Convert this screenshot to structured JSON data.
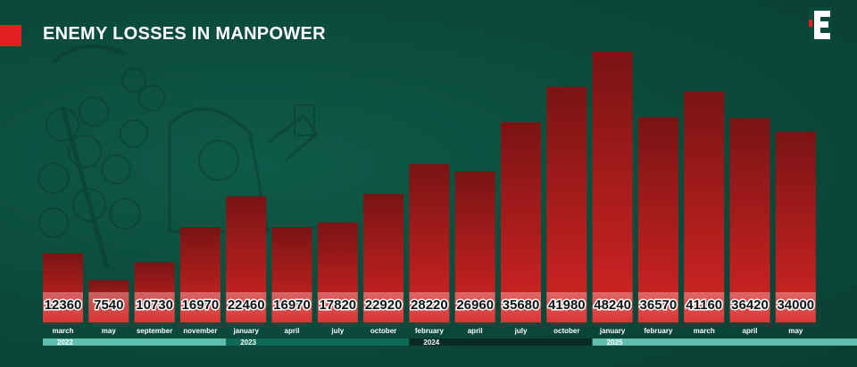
{
  "header": {
    "title": "ENEMY LOSSES IN MANPOWER",
    "logo_icon": "e-letter-logo-icon"
  },
  "colors": {
    "background": "#0b4a3b",
    "bar_top": "#7a1414",
    "bar_bottom": "#d42424",
    "accent": "#e02020",
    "timeline_light": "#5fbfae",
    "timeline_dark": "#0a2a22"
  },
  "chart_data": {
    "type": "bar",
    "title": "ENEMY LOSSES IN MANPOWER",
    "categories": [
      "march",
      "may",
      "september",
      "november",
      "january",
      "april",
      "july",
      "october",
      "february",
      "april",
      "july",
      "october",
      "january",
      "february",
      "march",
      "april",
      "may"
    ],
    "values": [
      12360,
      7540,
      10730,
      16970,
      22460,
      16970,
      17820,
      22920,
      28220,
      26960,
      35680,
      41980,
      48240,
      36570,
      41160,
      36420,
      34000
    ],
    "value_labels": [
      "12360",
      "7540",
      "10730",
      "16970",
      "22460",
      "16970",
      "17820",
      "22920",
      "28220",
      "26960",
      "35680",
      "41980",
      "48240",
      "36570",
      "41160",
      "36420",
      "34000"
    ],
    "years": [
      {
        "label": "2022",
        "start_index": 0,
        "end_index": 3
      },
      {
        "label": "2023",
        "start_index": 4,
        "end_index": 7
      },
      {
        "label": "2024",
        "start_index": 8,
        "end_index": 11
      },
      {
        "label": "2025",
        "start_index": 12,
        "end_index": 16
      }
    ],
    "ylim": [
      0,
      49000
    ],
    "grid": false,
    "legend": "none"
  }
}
